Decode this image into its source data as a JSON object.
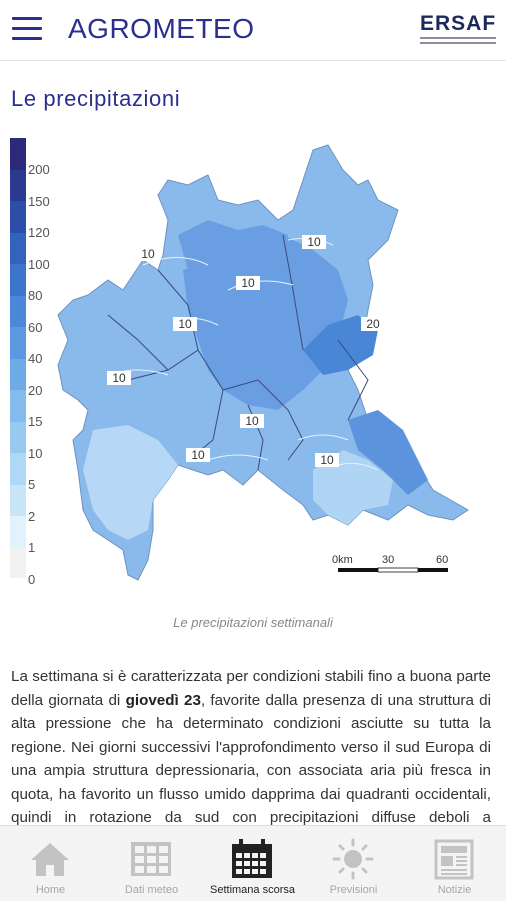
{
  "header": {
    "title": "AGROMETEO",
    "logo_text": "ERSAF"
  },
  "page": {
    "title": "Le precipitazioni"
  },
  "map": {
    "legend": [
      "200",
      "150",
      "120",
      "100",
      "80",
      "60",
      "40",
      "20",
      "15",
      "10",
      "5",
      "2",
      "1",
      "0"
    ],
    "legend_colors": [
      "#2c2a7a",
      "#2b3a91",
      "#2d4ea8",
      "#3363bd",
      "#3b75cc",
      "#4a88d9",
      "#5b99e0",
      "#6eaae6",
      "#82bbec",
      "#98caf0",
      "#afd8f4",
      "#c8e5f8",
      "#e2f2fc",
      "#f2f2f2"
    ],
    "contour_labels": [
      "10",
      "10",
      "10",
      "10",
      "10",
      "10",
      "10",
      "10",
      "20"
    ],
    "scale_labels": [
      "0km",
      "30",
      "60"
    ],
    "caption": "Le precipitazioni settimanali"
  },
  "article": {
    "p1_before": "La settimana si è caratterizzata per condizioni stabili fino a buona parte della giornata di ",
    "p1_bold": "giovedì 23",
    "p1_after": ", favorite dalla presenza di una struttura di alta pressione che ha determinato condizioni asciutte su tutta la regione. Nei giorni successivi l'approfondimento verso il sud Europa di una ampia struttura depressionaria, con associata aria più fresca in quota, ha favorito un flusso umido dapprima dai quadranti occidentali, quindi in rotazione da sud con precipitazioni diffuse deboli a interessare"
  },
  "tabs": [
    {
      "label": "Home",
      "icon": "home-icon",
      "active": false
    },
    {
      "label": "Dati meteo",
      "icon": "grid-table-icon",
      "active": false
    },
    {
      "label": "Settimana scorsa",
      "icon": "calendar-icon",
      "active": true
    },
    {
      "label": "Previsioni",
      "icon": "sun-icon",
      "active": false
    },
    {
      "label": "Notizie",
      "icon": "newspaper-icon",
      "active": false
    }
  ]
}
